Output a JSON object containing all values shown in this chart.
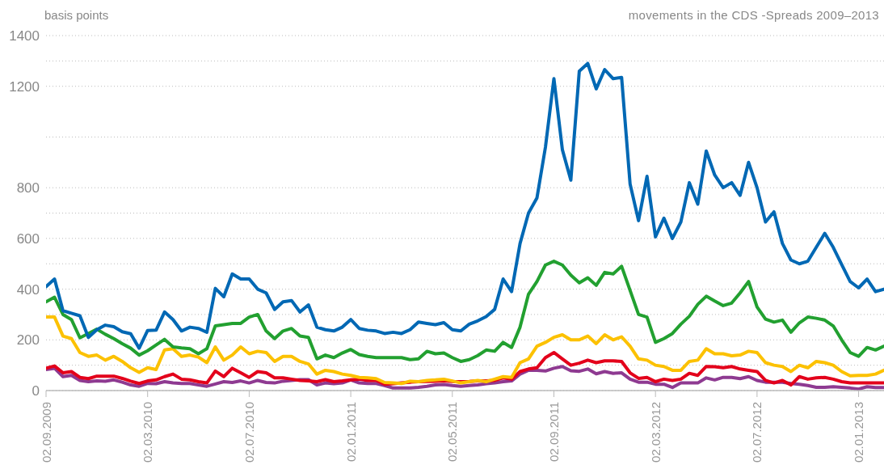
{
  "chart_data": {
    "type": "line",
    "title": "movements in the CDS -Spreads 2009–2013",
    "ylabel": "basis points",
    "categories": [
      "02.09.2009",
      null,
      null,
      null,
      null,
      null,
      null,
      null,
      null,
      null,
      null,
      null,
      "02.03.2010",
      null,
      null,
      null,
      null,
      null,
      null,
      null,
      null,
      null,
      null,
      null,
      "02.07.2010",
      null,
      null,
      null,
      null,
      null,
      null,
      null,
      null,
      null,
      null,
      null,
      "02.01.2011",
      null,
      null,
      null,
      null,
      null,
      null,
      null,
      null,
      null,
      null,
      null,
      "02.05.2011",
      null,
      null,
      null,
      null,
      null,
      null,
      null,
      null,
      null,
      null,
      null,
      "02.09.2011",
      null,
      null,
      null,
      null,
      null,
      null,
      null,
      null,
      null,
      null,
      null,
      "02.03.2012",
      null,
      null,
      null,
      null,
      null,
      null,
      null,
      null,
      null,
      null,
      null,
      "02.07.2012",
      null,
      null,
      null,
      null,
      null,
      null,
      null,
      null,
      null,
      null,
      null,
      "02.01.2013",
      null,
      null,
      null
    ],
    "series": [
      {
        "color": "#0068b4",
        "values": [
          410,
          440,
          315,
          305,
          295,
          210,
          240,
          258,
          252,
          232,
          224,
          167,
          237,
          238,
          310,
          280,
          235,
          250,
          245,
          230,
          403,
          370,
          460,
          440,
          440,
          400,
          385,
          320,
          350,
          355,
          310,
          338,
          250,
          240,
          235,
          250,
          280,
          245,
          238,
          235,
          225,
          230,
          225,
          240,
          270,
          265,
          260,
          268,
          240,
          235,
          262,
          275,
          292,
          320,
          440,
          390,
          580,
          700,
          760,
          960,
          1230,
          950,
          830,
          1260,
          1290,
          1190,
          1266,
          1230,
          1235,
          815,
          670,
          845,
          606,
          680,
          600,
          665,
          820,
          735,
          945,
          850,
          800,
          820,
          770,
          900,
          800,
          665,
          705,
          580,
          515,
          500,
          510,
          565,
          620,
          565,
          497,
          430,
          405,
          440,
          390,
          400
        ]
      },
      {
        "color": "#22a030",
        "values": [
          350,
          368,
          300,
          280,
          208,
          225,
          242,
          222,
          205,
          185,
          167,
          140,
          157,
          180,
          202,
          172,
          168,
          165,
          145,
          165,
          255,
          260,
          265,
          265,
          290,
          300,
          235,
          205,
          235,
          245,
          215,
          210,
          125,
          140,
          130,
          148,
          162,
          142,
          135,
          130,
          130,
          130,
          130,
          122,
          125,
          155,
          145,
          148,
          130,
          115,
          122,
          138,
          160,
          155,
          190,
          170,
          250,
          380,
          430,
          495,
          510,
          495,
          455,
          425,
          445,
          415,
          466,
          460,
          490,
          395,
          300,
          290,
          190,
          205,
          225,
          262,
          293,
          340,
          372,
          353,
          335,
          345,
          385,
          430,
          330,
          282,
          270,
          278,
          230,
          267,
          290,
          285,
          278,
          255,
          200,
          150,
          135,
          170,
          160,
          175
        ]
      },
      {
        "color": "#fcc100",
        "values": [
          290,
          290,
          215,
          205,
          150,
          135,
          140,
          120,
          135,
          115,
          90,
          72,
          90,
          83,
          160,
          165,
          135,
          140,
          132,
          110,
          172,
          120,
          140,
          172,
          145,
          155,
          150,
          115,
          135,
          135,
          115,
          105,
          65,
          80,
          75,
          65,
          60,
          52,
          50,
          47,
          32,
          30,
          28,
          37,
          35,
          40,
          42,
          45,
          38,
          30,
          35,
          40,
          35,
          45,
          55,
          52,
          110,
          125,
          175,
          190,
          210,
          220,
          200,
          200,
          215,
          185,
          220,
          200,
          212,
          175,
          125,
          120,
          100,
          95,
          80,
          80,
          115,
          120,
          165,
          145,
          145,
          137,
          140,
          155,
          150,
          110,
          100,
          95,
          75,
          100,
          90,
          115,
          110,
          100,
          75,
          58,
          60,
          60,
          65,
          80
        ]
      },
      {
        "color": "#e3001b",
        "values": [
          88,
          97,
          70,
          75,
          52,
          47,
          57,
          57,
          57,
          48,
          37,
          28,
          38,
          42,
          55,
          65,
          45,
          42,
          35,
          30,
          77,
          55,
          88,
          70,
          52,
          75,
          70,
          50,
          50,
          45,
          40,
          38,
          35,
          43,
          35,
          38,
          42,
          45,
          40,
          40,
          25,
          27,
          30,
          33,
          35,
          36,
          37,
          38,
          36,
          35,
          36,
          38,
          38,
          40,
          50,
          45,
          75,
          85,
          90,
          130,
          150,
          125,
          100,
          108,
          120,
          110,
          117,
          117,
          115,
          70,
          48,
          52,
          35,
          45,
          40,
          45,
          68,
          60,
          95,
          94,
          90,
          95,
          85,
          80,
          75,
          40,
          30,
          40,
          22,
          55,
          45,
          50,
          52,
          45,
          35,
          30,
          30,
          30,
          30,
          30
        ]
      },
      {
        "color": "#8e3a91",
        "values": [
          83,
          88,
          55,
          60,
          40,
          35,
          38,
          37,
          42,
          33,
          22,
          17,
          28,
          27,
          35,
          30,
          28,
          28,
          22,
          17,
          26,
          35,
          32,
          38,
          30,
          40,
          32,
          30,
          37,
          40,
          43,
          43,
          22,
          30,
          27,
          30,
          42,
          30,
          28,
          28,
          20,
          10,
          10,
          10,
          13,
          17,
          22,
          24,
          20,
          17,
          20,
          22,
          27,
          30,
          35,
          38,
          65,
          80,
          80,
          77,
          88,
          95,
          78,
          76,
          85,
          66,
          75,
          68,
          70,
          45,
          33,
          33,
          25,
          25,
          12,
          30,
          30,
          30,
          50,
          42,
          52,
          52,
          47,
          55,
          40,
          33,
          33,
          33,
          28,
          25,
          20,
          13,
          13,
          15,
          13,
          10,
          6,
          15,
          12,
          12
        ]
      }
    ],
    "ylim": [
      0,
      1400
    ],
    "yticks": [
      0,
      {
        "value": 100,
        "label": null
      },
      200,
      {
        "value": 300,
        "label": null
      },
      400,
      {
        "value": 500,
        "label": null
      },
      600,
      {
        "value": 700,
        "label": null
      },
      800,
      {
        "value": 1000,
        "label": null
      },
      1200,
      {
        "value": 1300,
        "label": null
      },
      1400
    ],
    "grid": "y"
  }
}
